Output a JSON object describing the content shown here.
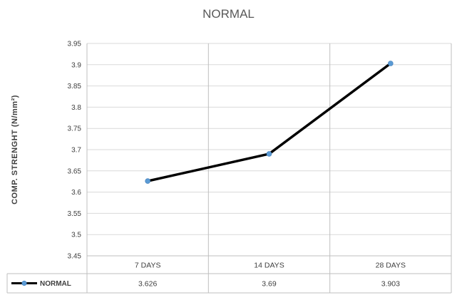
{
  "chart_data": {
    "type": "line",
    "title": "NORMAL",
    "xlabel": "",
    "ylabel": "COMP. STRENGHT (N/mm²)",
    "categories": [
      "7 DAYS",
      "14 DAYS",
      "28 DAYS"
    ],
    "series": [
      {
        "name": "NORMAL",
        "values": [
          3.626,
          3.69,
          3.903
        ],
        "value_labels": [
          "3.626",
          "3.69",
          "3.903"
        ]
      }
    ],
    "ylim": [
      3.45,
      3.95
    ],
    "yticks": [
      3.45,
      3.5,
      3.55,
      3.6,
      3.65,
      3.7,
      3.75,
      3.8,
      3.85,
      3.9,
      3.95
    ],
    "ytick_labels": [
      "3.45",
      "3.5",
      "3.55",
      "3.6",
      "3.65",
      "3.7",
      "3.75",
      "3.8",
      "3.85",
      "3.9",
      "3.95"
    ],
    "grid": true,
    "data_table": true,
    "colors": {
      "line": "#000000",
      "marker": "#5b9bd5",
      "grid": "#d9d9d9"
    }
  }
}
